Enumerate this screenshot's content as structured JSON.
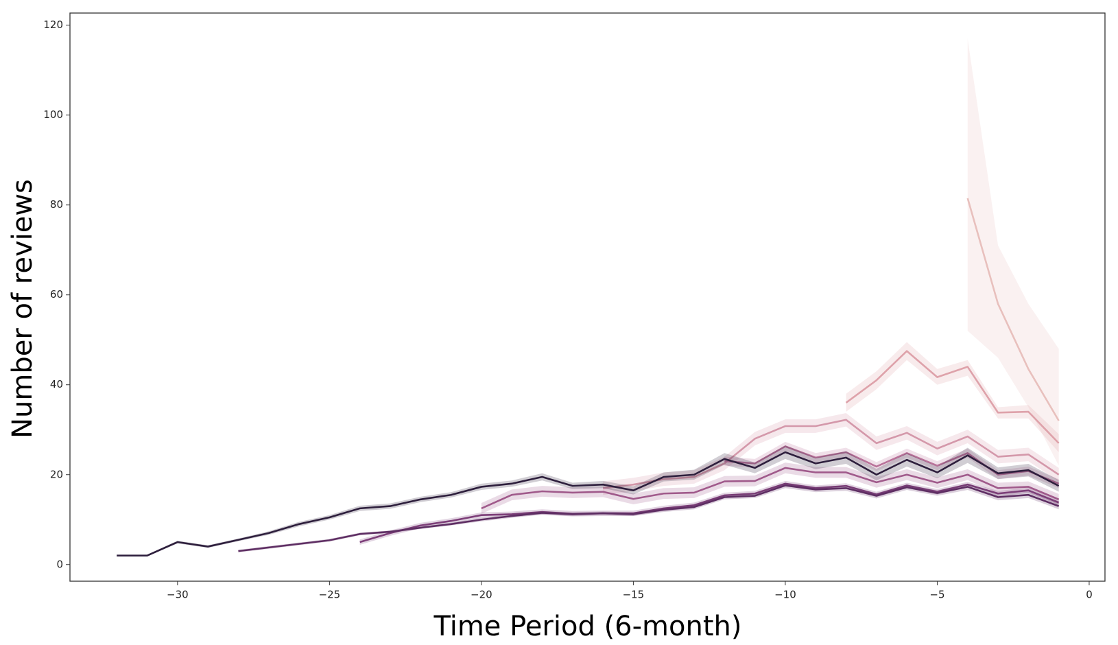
{
  "chart_data": {
    "type": "line",
    "x_label": "Time Period (6-month)",
    "y_label": "Number of reviews",
    "xlim": [
      -33.54,
      0.52
    ],
    "ylim": [
      -3.7,
      122.7
    ],
    "xticks": [
      {
        "value": -30,
        "label": "−30"
      },
      {
        "value": -25,
        "label": "−25"
      },
      {
        "value": -20,
        "label": "−20"
      },
      {
        "value": -15,
        "label": "−15"
      },
      {
        "value": -10,
        "label": "−10"
      },
      {
        "value": -5,
        "label": "−5"
      },
      0
    ],
    "yticks": [
      0,
      20,
      40,
      60,
      80,
      100,
      120
    ],
    "series": [
      {
        "color": "#e8c0bd",
        "x": [
          -4,
          -3,
          -2,
          -1
        ],
        "values": [
          81.5,
          58,
          43.5,
          32
        ],
        "lower": [
          52,
          46,
          35,
          22
        ],
        "upper": [
          117,
          71,
          58,
          48
        ]
      },
      {
        "color": "#dea2aa",
        "x": [
          -8,
          -7,
          -6,
          -5,
          -4,
          -3,
          -2,
          -1
        ],
        "values": [
          36,
          41,
          47.5,
          41.7,
          44,
          33.8,
          34,
          27
        ],
        "lower": [
          34,
          39,
          45.5,
          40,
          42,
          32.5,
          32.5,
          25
        ],
        "upper": [
          38,
          43,
          49.5,
          43.5,
          45.5,
          35,
          35.5,
          29
        ]
      },
      {
        "color": "#d498aa",
        "x": [
          -16,
          -15,
          -14,
          -13,
          -12,
          -11,
          -10,
          -9,
          -8,
          -7,
          -6,
          -5,
          -4,
          -3,
          -2,
          -1
        ],
        "values": [
          17,
          17.8,
          19,
          19.5,
          22.5,
          28,
          30.8,
          30.8,
          32.2,
          27,
          29.3,
          25.8,
          28.5,
          24,
          24.5,
          20
        ],
        "lower": [
          15.5,
          16.3,
          17.5,
          18,
          21,
          26.5,
          29.3,
          29.3,
          30.7,
          25.5,
          27.8,
          24.3,
          27,
          22.5,
          23,
          18.5
        ],
        "upper": [
          18.5,
          19.3,
          20.5,
          21,
          24,
          29.5,
          32.3,
          32.3,
          33.7,
          28.5,
          30.8,
          27.3,
          30,
          25.5,
          26,
          21.5
        ]
      },
      {
        "color": "#b9739a",
        "x": [
          -12,
          -11,
          -10,
          -9,
          -8,
          -7,
          -6,
          -5,
          -4,
          -3,
          -2,
          -1
        ],
        "values": [
          23,
          22.5,
          26.3,
          23.8,
          25,
          21.8,
          24.8,
          22,
          24.8,
          20,
          20.8,
          18
        ],
        "lower": [
          22,
          21.5,
          25.3,
          22.8,
          24,
          20.8,
          23.8,
          21,
          23.8,
          19,
          19.8,
          17
        ],
        "upper": [
          24,
          23.5,
          27.3,
          24.8,
          26,
          22.8,
          25.8,
          23,
          25.8,
          21,
          21.8,
          19
        ]
      },
      {
        "color": "#a05a8b",
        "x": [
          -20,
          -19,
          -18,
          -17,
          -16,
          -15,
          -14,
          -13,
          -12,
          -11,
          -10,
          -9,
          -8,
          -7,
          -6,
          -5,
          -4,
          -3,
          -2,
          -1
        ],
        "values": [
          12.5,
          15.5,
          16.3,
          16,
          16.2,
          14.6,
          15.8,
          16,
          18.5,
          18.6,
          21.5,
          20.5,
          20.5,
          18.3,
          20,
          18.2,
          20,
          17,
          17.3,
          14.5
        ],
        "lower": [
          11.3,
          14.3,
          15.1,
          14.8,
          15,
          13.4,
          14.6,
          14.8,
          17.3,
          17.4,
          20.3,
          19.3,
          19.3,
          17.1,
          18.8,
          17,
          18.8,
          15.8,
          16.1,
          13.3
        ],
        "upper": [
          13.7,
          16.7,
          17.5,
          17.2,
          17.4,
          15.8,
          17,
          17.2,
          19.7,
          19.8,
          22.7,
          21.7,
          21.7,
          19.5,
          21.2,
          19.4,
          21.2,
          18.2,
          18.5,
          15.7
        ]
      },
      {
        "color": "#7d3f79",
        "x": [
          -24,
          -23,
          -22,
          -21,
          -20,
          -19,
          -18,
          -17,
          -16,
          -15,
          -14,
          -13,
          -12,
          -11,
          -10,
          -9,
          -8,
          -7,
          -6,
          -5,
          -4,
          -3,
          -2,
          -1
        ],
        "values": [
          5,
          7,
          8.7,
          9.7,
          11,
          11.2,
          11.7,
          11.3,
          11.4,
          11.4,
          12.5,
          13.2,
          15.4,
          15.8,
          18,
          17,
          17.5,
          15.6,
          17.6,
          16.2,
          17.8,
          15.8,
          16.5,
          13.8
        ],
        "lower": [
          4.4,
          6.4,
          8.1,
          9.1,
          10.4,
          10.6,
          11.1,
          10.7,
          10.8,
          10.8,
          11.9,
          12.6,
          14.8,
          15.2,
          17.4,
          16.4,
          16.9,
          15,
          17,
          15.6,
          17.2,
          15.2,
          15.9,
          13.2
        ],
        "upper": [
          5.6,
          7.6,
          9.3,
          10.3,
          11.6,
          11.8,
          12.3,
          11.9,
          12,
          12,
          13.1,
          13.8,
          16,
          16.4,
          18.6,
          17.6,
          18.1,
          16.2,
          18.2,
          16.8,
          18.4,
          16.4,
          17.1,
          14.4
        ]
      },
      {
        "color": "#5e2e63",
        "x": [
          -28,
          -27,
          -26,
          -25,
          -24,
          -23,
          -22,
          -21,
          -20,
          -19,
          -18,
          -17,
          -16,
          -15,
          -14,
          -13,
          -12,
          -11,
          -10,
          -9,
          -8,
          -7,
          -6,
          -5,
          -4,
          -3,
          -2,
          -1
        ],
        "values": [
          3,
          3.8,
          4.6,
          5.4,
          6.8,
          7.3,
          8.2,
          9,
          10,
          10.8,
          11.5,
          11.2,
          11.4,
          11.2,
          12.2,
          12.8,
          15,
          15.3,
          17.6,
          16.7,
          17,
          15.3,
          17.2,
          15.9,
          17.3,
          15,
          15.5,
          13
        ],
        "lower": [
          2.7,
          3.5,
          4.3,
          5.1,
          6.5,
          7,
          7.9,
          8.7,
          9.6,
          10.4,
          11.1,
          10.8,
          11,
          10.8,
          11.7,
          12.3,
          14.5,
          14.8,
          17,
          16.1,
          16.4,
          14.7,
          16.6,
          15.3,
          16.6,
          14.3,
          14.8,
          12.3
        ],
        "upper": [
          3.3,
          4.1,
          4.9,
          5.7,
          7.1,
          7.6,
          8.5,
          9.3,
          10.4,
          11.2,
          11.9,
          11.6,
          11.8,
          11.6,
          12.7,
          13.3,
          15.5,
          15.8,
          18.2,
          17.3,
          17.6,
          15.9,
          17.8,
          16.5,
          18,
          15.7,
          16.2,
          13.7
        ]
      },
      {
        "color": "#2e1f3d",
        "x": [
          -32,
          -31,
          -30,
          -29,
          -28,
          -27,
          -26,
          -25,
          -24,
          -23,
          -22,
          -21,
          -20,
          -19,
          -18,
          -17,
          -16,
          -15,
          -14,
          -13,
          -12,
          -11,
          -10,
          -9,
          -8,
          -7,
          -6,
          -5,
          -4,
          -3,
          -2,
          -1
        ],
        "values": [
          2,
          2,
          5,
          4,
          5.5,
          7,
          9,
          10.5,
          12.5,
          13,
          14.5,
          15.5,
          17.3,
          18,
          19.5,
          17.5,
          17.8,
          16.5,
          19.5,
          20,
          23.5,
          21.5,
          25,
          22.5,
          23.8,
          20,
          23.3,
          20.5,
          24.3,
          20.3,
          21,
          17.5
        ],
        "lower": [
          1.8,
          1.8,
          4.7,
          3.7,
          5.2,
          6.6,
          8.5,
          10,
          11.9,
          12.4,
          13.9,
          14.9,
          16.6,
          17.3,
          18.7,
          16.8,
          17,
          15.6,
          18.5,
          18.9,
          22.2,
          20.3,
          23.5,
          21.2,
          22.4,
          18.7,
          21.8,
          19.2,
          22.6,
          19,
          19.6,
          16.2
        ],
        "upper": [
          2.2,
          2.2,
          5.3,
          4.3,
          5.8,
          7.4,
          9.5,
          11,
          13.1,
          13.6,
          15.1,
          16.1,
          18,
          18.7,
          20.3,
          18.2,
          18.6,
          17.4,
          20.5,
          21.1,
          24.8,
          22.7,
          26.5,
          23.8,
          25.2,
          21.3,
          24.8,
          21.8,
          26,
          21.6,
          22.4,
          18.8
        ]
      }
    ]
  }
}
